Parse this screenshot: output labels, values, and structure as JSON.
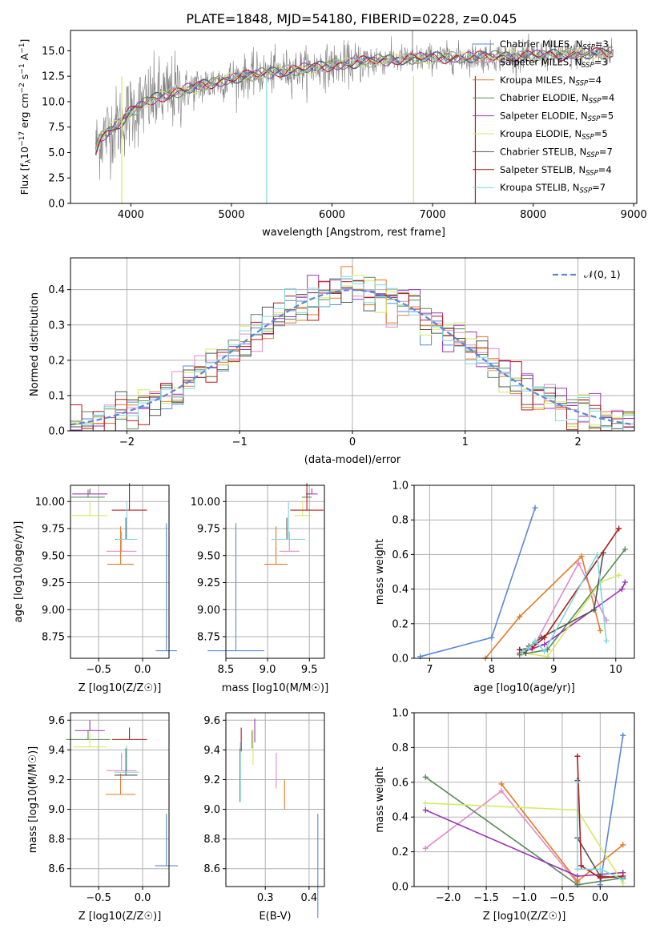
{
  "figure": {
    "title": "PLATE=1848, MJD=54180, FIBERID=0228, z=0.045"
  },
  "colors": {
    "Chabrier MILES": "#5b87d6",
    "Salpeter MILES": "#e28bc9",
    "Kroupa MILES": "#e07b25",
    "Chabrier ELODIE": "#5a8a5a",
    "Salpeter ELODIE": "#9b35b5",
    "Kroupa ELODIE": "#d5ea62",
    "Chabrier STELIB": "#555555",
    "Salpeter STELIB": "#b21a1a",
    "Kroupa STELIB": "#7fd8dc",
    "data": "#7f7f7f"
  },
  "chart_data": [
    {
      "id": "spectrum",
      "type": "line",
      "title": "PLATE=1848, MJD=54180, FIBERID=0228, z=0.045",
      "xlabel": "wavelength [Angstrom, rest frame]",
      "ylabel": "Flux [f_λ 10^-17 erg cm^-2 s^-1 A^-1]",
      "xlim": [
        3400,
        9030
      ],
      "ylim": [
        0,
        17
      ],
      "xticks": [
        4000,
        5000,
        6000,
        7000,
        8000,
        9000
      ],
      "yticks": [
        0.0,
        2.5,
        5.0,
        7.5,
        10.0,
        12.5,
        15.0
      ],
      "legend_position": "right",
      "legend": [
        {
          "label": "Chabrier MILES, N",
          "sub": "SSP",
          "n": "=3"
        },
        {
          "label": "Salpeter MILES, N",
          "sub": "SSP",
          "n": "=3"
        },
        {
          "label": "Kroupa MILES, N",
          "sub": "SSP",
          "n": "=4"
        },
        {
          "label": "Chabrier ELODIE, N",
          "sub": "SSP",
          "n": "=4"
        },
        {
          "label": "Salpeter ELODIE, N",
          "sub": "SSP",
          "n": "=5"
        },
        {
          "label": "Kroupa ELODIE, N",
          "sub": "SSP",
          "n": "=5"
        },
        {
          "label": "Chabrier STELIB, N",
          "sub": "SSP",
          "n": "=7"
        },
        {
          "label": "Salpeter STELIB, N",
          "sub": "SSP",
          "n": "=4"
        },
        {
          "label": "Kroupa STELIB, N",
          "sub": "SSP",
          "n": "=7"
        }
      ],
      "continuum": [
        [
          3650,
          5.3
        ],
        [
          3700,
          6.5
        ],
        [
          3800,
          7.3
        ],
        [
          3900,
          8.0
        ],
        [
          4000,
          9.0
        ],
        [
          4200,
          10.2
        ],
        [
          4400,
          10.8
        ],
        [
          4600,
          11.3
        ],
        [
          4800,
          11.8
        ],
        [
          5000,
          12.3
        ],
        [
          5200,
          12.6
        ],
        [
          5500,
          13.0
        ],
        [
          5800,
          13.3
        ],
        [
          6100,
          13.7
        ],
        [
          6500,
          14.1
        ],
        [
          7000,
          14.3
        ],
        [
          7500,
          14.4
        ],
        [
          8000,
          14.5
        ],
        [
          8500,
          14.7
        ],
        [
          8800,
          14.8
        ]
      ],
      "spikes": [
        [
          3910,
          0
        ],
        [
          5350,
          0
        ],
        [
          6810,
          0
        ],
        [
          7425,
          0
        ],
        [
          5350,
          13.0
        ],
        [
          6800,
          17.0
        ]
      ]
    },
    {
      "id": "residuals",
      "type": "histogram",
      "xlabel": "(data-model)/error",
      "ylabel": "Normed distribution",
      "xlim": [
        -2.5,
        2.5
      ],
      "ylim": [
        0,
        0.49
      ],
      "xticks": [
        -2,
        -1,
        0,
        1,
        2
      ],
      "yticks": [
        0.0,
        0.1,
        0.2,
        0.3,
        0.4
      ],
      "legend": "𝒩(0, 1)",
      "legend_position": "top-right",
      "bin_width": 0.1,
      "reference_curve": "normal(0,1)"
    },
    {
      "id": "age-vs-Z",
      "type": "errorbar",
      "xlabel": "Z [log10(Z/Z☉)]",
      "ylabel": "age [log10(age/yr)]",
      "xlim": [
        -0.82,
        0.3
      ],
      "ylim": [
        8.55,
        10.15
      ],
      "xticks": [
        -0.5,
        0.0
      ],
      "yticks": [
        8.75,
        9.0,
        9.25,
        9.5,
        9.75,
        10.0
      ],
      "points": [
        {
          "model": "Chabrier MILES",
          "x": 0.27,
          "xerr": 0.12,
          "y": 8.62,
          "yerr": 1.18
        },
        {
          "model": "Salpeter MILES",
          "x": -0.24,
          "xerr": 0.17,
          "y": 9.54,
          "yerr": 0.18
        },
        {
          "model": "Kroupa MILES",
          "x": -0.25,
          "xerr": 0.15,
          "y": 9.42,
          "yerr": 0.35
        },
        {
          "model": "Chabrier ELODIE",
          "x": -0.62,
          "xerr": 0.19,
          "y": 10.04,
          "yerr": 0.07
        },
        {
          "model": "Salpeter ELODIE",
          "x": -0.6,
          "xerr": 0.2,
          "y": 10.07,
          "yerr": 0.05
        },
        {
          "model": "Kroupa ELODIE",
          "x": -0.6,
          "xerr": 0.2,
          "y": 9.87,
          "yerr": 0.14
        },
        {
          "model": "Chabrier STELIB",
          "x": -0.19,
          "xerr": 0.12,
          "y": 9.65,
          "yerr": 0.2
        },
        {
          "model": "Salpeter STELIB",
          "x": -0.15,
          "xerr": 0.2,
          "y": 9.92,
          "yerr": 0.25
        },
        {
          "model": "Kroupa STELIB",
          "x": -0.18,
          "xerr": 0.12,
          "y": 9.65,
          "yerr": 0.35
        }
      ]
    },
    {
      "id": "age-vs-mass",
      "type": "errorbar",
      "xlabel": "mass [log10(M/M☉)]",
      "ylabel": "",
      "xlim": [
        8.5,
        9.68
      ],
      "ylim": [
        8.55,
        10.15
      ],
      "xticks": [
        8.5,
        9.0,
        9.5
      ],
      "yticks": [
        8.75,
        9.0,
        9.25,
        9.5,
        9.75,
        10.0
      ],
      "points": [
        {
          "model": "Chabrier MILES",
          "x": 8.62,
          "xerr": 0.34,
          "y": 8.62,
          "yerr": 1.18
        },
        {
          "model": "Salpeter MILES",
          "x": 9.26,
          "xerr": 0.12,
          "y": 9.54,
          "yerr": 0.18
        },
        {
          "model": "Kroupa MILES",
          "x": 9.1,
          "xerr": 0.14,
          "y": 9.42,
          "yerr": 0.35
        },
        {
          "model": "Chabrier ELODIE",
          "x": 9.47,
          "xerr": 0.06,
          "y": 10.04,
          "yerr": 0.07
        },
        {
          "model": "Salpeter ELODIE",
          "x": 9.53,
          "xerr": 0.07,
          "y": 10.07,
          "yerr": 0.05
        },
        {
          "model": "Kroupa ELODIE",
          "x": 9.42,
          "xerr": 0.1,
          "y": 9.87,
          "yerr": 0.14
        },
        {
          "model": "Chabrier STELIB",
          "x": 9.23,
          "xerr": 0.18,
          "y": 9.65,
          "yerr": 0.2
        },
        {
          "model": "Salpeter STELIB",
          "x": 9.47,
          "xerr": 0.2,
          "y": 9.92,
          "yerr": 0.25
        },
        {
          "model": "Kroupa STELIB",
          "x": 9.25,
          "xerr": 0.2,
          "y": 9.65,
          "yerr": 0.35
        }
      ]
    },
    {
      "id": "mass-weight-vs-age",
      "type": "line",
      "xlabel": "age [log10(age/yr)]",
      "ylabel": "mass weight",
      "xlim": [
        6.75,
        10.3
      ],
      "ylim": [
        0,
        1
      ],
      "xticks": [
        7,
        8,
        9,
        10
      ],
      "yticks": [
        0.0,
        0.2,
        0.4,
        0.6,
        0.8,
        1.0
      ],
      "series": [
        {
          "model": "Chabrier MILES",
          "x": [
            6.85,
            8.0,
            8.7
          ],
          "y": [
            0.01,
            0.12,
            0.87
          ]
        },
        {
          "model": "Salpeter MILES",
          "x": [
            8.65,
            9.4,
            9.85
          ],
          "y": [
            0.05,
            0.55,
            0.22
          ]
        },
        {
          "model": "Kroupa MILES",
          "x": [
            7.9,
            8.45,
            9.45,
            9.75
          ],
          "y": [
            0.0,
            0.24,
            0.59,
            0.16
          ]
        },
        {
          "model": "Chabrier ELODIE",
          "x": [
            8.45,
            8.9,
            10.15
          ],
          "y": [
            0.02,
            0.05,
            0.63
          ]
        },
        {
          "model": "Salpeter ELODIE",
          "x": [
            8.45,
            8.85,
            10.1,
            10.15
          ],
          "y": [
            0.03,
            0.08,
            0.4,
            0.44
          ]
        },
        {
          "model": "Kroupa ELODIE",
          "x": [
            8.5,
            8.9,
            9.75,
            10.05
          ],
          "y": [
            0.03,
            0.01,
            0.44,
            0.48
          ]
        },
        {
          "model": "Chabrier STELIB",
          "x": [
            8.45,
            8.55,
            8.6,
            8.7,
            8.8,
            9.65,
            9.8
          ],
          "y": [
            0.05,
            0.03,
            0.07,
            0.09,
            0.12,
            0.28,
            0.61
          ]
        },
        {
          "model": "Salpeter STELIB",
          "x": [
            8.45,
            8.65,
            8.85,
            10.05
          ],
          "y": [
            0.05,
            0.06,
            0.12,
            0.75
          ]
        },
        {
          "model": "Kroupa STELIB",
          "x": [
            8.5,
            8.6,
            8.7,
            8.85,
            9.7,
            9.85
          ],
          "y": [
            0.04,
            0.06,
            0.1,
            0.04,
            0.6,
            0.1
          ]
        }
      ]
    },
    {
      "id": "mass-vs-Z",
      "type": "errorbar",
      "xlabel": "Z [log10(Z/Z☉)]",
      "ylabel": "mass [log10(M/M☉)]",
      "xlim": [
        -0.82,
        0.3
      ],
      "ylim": [
        8.48,
        9.65
      ],
      "xticks": [
        -0.5,
        0.0
      ],
      "yticks": [
        8.6,
        8.8,
        9.0,
        9.2,
        9.4,
        9.6
      ],
      "points": [
        {
          "model": "Chabrier MILES",
          "x": 0.27,
          "xerr": 0.13,
          "y": 8.62,
          "yerr": 0.35
        },
        {
          "model": "Salpeter MILES",
          "x": -0.24,
          "xerr": 0.17,
          "y": 9.26,
          "yerr": 0.12
        },
        {
          "model": "Kroupa MILES",
          "x": -0.25,
          "xerr": 0.17,
          "y": 9.1,
          "yerr": 0.14
        },
        {
          "model": "Chabrier ELODIE",
          "x": -0.62,
          "xerr": 0.25,
          "y": 9.47,
          "yerr": 0.06
        },
        {
          "model": "Salpeter ELODIE",
          "x": -0.6,
          "xerr": 0.17,
          "y": 9.53,
          "yerr": 0.07
        },
        {
          "model": "Kroupa ELODIE",
          "x": -0.6,
          "xerr": 0.19,
          "y": 9.42,
          "yerr": 0.1
        },
        {
          "model": "Chabrier STELIB",
          "x": -0.19,
          "xerr": 0.13,
          "y": 9.23,
          "yerr": 0.18
        },
        {
          "model": "Salpeter STELIB",
          "x": -0.15,
          "xerr": 0.2,
          "y": 9.47,
          "yerr": 0.08
        },
        {
          "model": "Kroupa STELIB",
          "x": -0.18,
          "xerr": 0.14,
          "y": 9.25,
          "yerr": 0.18
        }
      ]
    },
    {
      "id": "mass-vs-ebv",
      "type": "errorbar",
      "xlabel": "E(B-V)",
      "ylabel": "",
      "xlim": [
        0.21,
        0.435
      ],
      "ylim": [
        8.48,
        9.65
      ],
      "xticks": [
        0.3,
        0.4
      ],
      "yticks": [
        8.6,
        8.8,
        9.0,
        9.2,
        9.4,
        9.6
      ],
      "points": [
        {
          "model": "Chabrier MILES",
          "x": 0.42,
          "y": 8.62,
          "yerr": 0.35
        },
        {
          "model": "Salpeter MILES",
          "x": 0.325,
          "y": 9.26,
          "yerr": 0.12
        },
        {
          "model": "Kroupa MILES",
          "x": 0.344,
          "y": 9.1,
          "yerr": 0.1
        },
        {
          "model": "Chabrier ELODIE",
          "x": 0.27,
          "y": 9.47,
          "yerr": 0.06
        },
        {
          "model": "Salpeter ELODIE",
          "x": 0.276,
          "y": 9.53,
          "yerr": 0.08
        },
        {
          "model": "Kroupa ELODIE",
          "x": 0.272,
          "y": 9.42,
          "yerr": 0.12
        },
        {
          "model": "Chabrier STELIB",
          "x": 0.242,
          "y": 9.23,
          "yerr": 0.18
        },
        {
          "model": "Salpeter STELIB",
          "x": 0.245,
          "y": 9.47,
          "yerr": 0.08
        },
        {
          "model": "Kroupa STELIB",
          "x": 0.243,
          "y": 9.25,
          "yerr": 0.2
        }
      ]
    },
    {
      "id": "mass-weight-vs-Z",
      "type": "line",
      "xlabel": "Z [log10(Z/Z☉)]",
      "ylabel": "mass weight",
      "xlim": [
        -2.45,
        0.45
      ],
      "ylim": [
        0,
        1
      ],
      "xticks": [
        -2.0,
        -1.5,
        -1.0,
        -0.5,
        0.0
      ],
      "yticks": [
        0.0,
        0.2,
        0.4,
        0.6,
        0.8,
        1.0
      ],
      "series": [
        {
          "model": "Chabrier MILES",
          "x": [
            0.0,
            0.3
          ],
          "y": [
            0.01,
            0.87
          ]
        },
        {
          "model": "Salpeter MILES",
          "x": [
            -2.3,
            -1.3,
            -0.3
          ],
          "y": [
            0.22,
            0.55,
            0.02
          ]
        },
        {
          "model": "Kroupa MILES",
          "x": [
            -1.3,
            -0.3,
            0.3
          ],
          "y": [
            0.59,
            0.03,
            0.24
          ]
        },
        {
          "model": "Chabrier ELODIE",
          "x": [
            -2.3,
            -0.3,
            0.3
          ],
          "y": [
            0.63,
            0.01,
            0.05
          ]
        },
        {
          "model": "Salpeter ELODIE",
          "x": [
            -2.3,
            -0.3,
            0.3
          ],
          "y": [
            0.44,
            0.06,
            0.08
          ]
        },
        {
          "model": "Kroupa ELODIE",
          "x": [
            -2.3,
            -0.3,
            0.3
          ],
          "y": [
            0.48,
            0.44,
            0.02
          ]
        },
        {
          "model": "Chabrier STELIB",
          "x": [
            -0.3,
            -0.3,
            0.0,
            0.3
          ],
          "y": [
            0.61,
            0.28,
            0.06,
            0.05
          ]
        },
        {
          "model": "Salpeter STELIB",
          "x": [
            -0.3,
            -0.25,
            0.0,
            0.3
          ],
          "y": [
            0.75,
            0.12,
            0.05,
            0.06
          ]
        },
        {
          "model": "Kroupa STELIB",
          "x": [
            -0.3,
            -0.3,
            0.0,
            0.3
          ],
          "y": [
            0.6,
            0.1,
            0.1,
            0.04
          ]
        }
      ]
    }
  ]
}
